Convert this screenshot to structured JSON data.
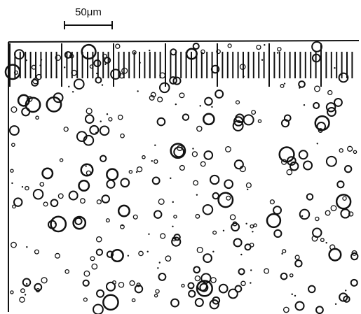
{
  "scale_bar": {
    "label": "50μm"
  }
}
